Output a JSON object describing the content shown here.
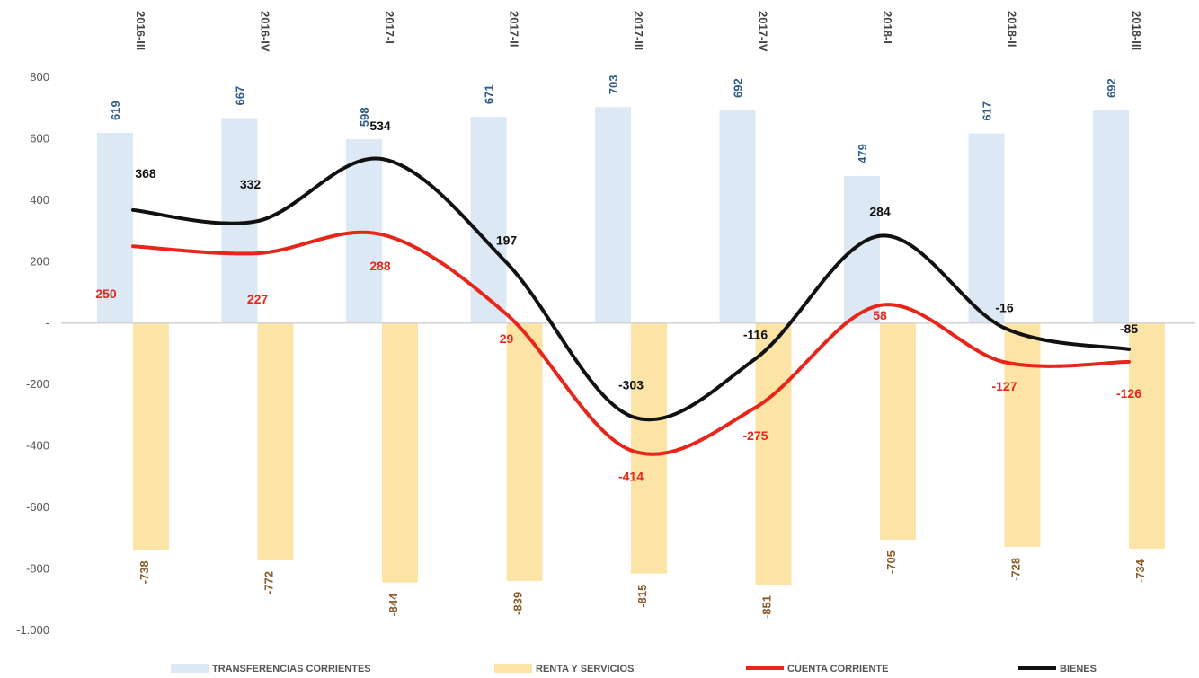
{
  "chart_data": {
    "type": "bar",
    "categories": [
      "2016-III",
      "2016-IV",
      "2017-I",
      "2017-II",
      "2017-III",
      "2017-IV",
      "2018-I",
      "2018-II",
      "2018-III"
    ],
    "y_ticks": [
      "800",
      "600",
      "400",
      "200",
      "-",
      "-200",
      "-400",
      "-600",
      "-800",
      "-1.000"
    ],
    "ylim": [
      -1000,
      800
    ],
    "grid": false,
    "legend_position": "bottom",
    "series": [
      {
        "name": "TRANSFERENCIAS CORRIENTES",
        "kind": "bar",
        "color": "#dde8f5",
        "label_color": "#2e5c8a",
        "values": [
          619,
          667,
          598,
          671,
          703,
          692,
          479,
          617,
          692
        ]
      },
      {
        "name": "RENTA Y SERVICIOS",
        "kind": "bar",
        "color": "#fbe4a6",
        "label_color": "#8a5a2b",
        "values": [
          -738,
          -772,
          -844,
          -839,
          -815,
          -851,
          -705,
          -728,
          -734
        ]
      },
      {
        "name": "CUENTA CORRIENTE",
        "kind": "line",
        "color": "#e8251a",
        "values": [
          250,
          227,
          288,
          29,
          -414,
          -275,
          58,
          -127,
          -126
        ]
      },
      {
        "name": "BIENES",
        "kind": "line",
        "color": "#111111",
        "values": [
          368,
          332,
          534,
          197,
          -303,
          -116,
          284,
          -16,
          -85
        ]
      }
    ]
  }
}
